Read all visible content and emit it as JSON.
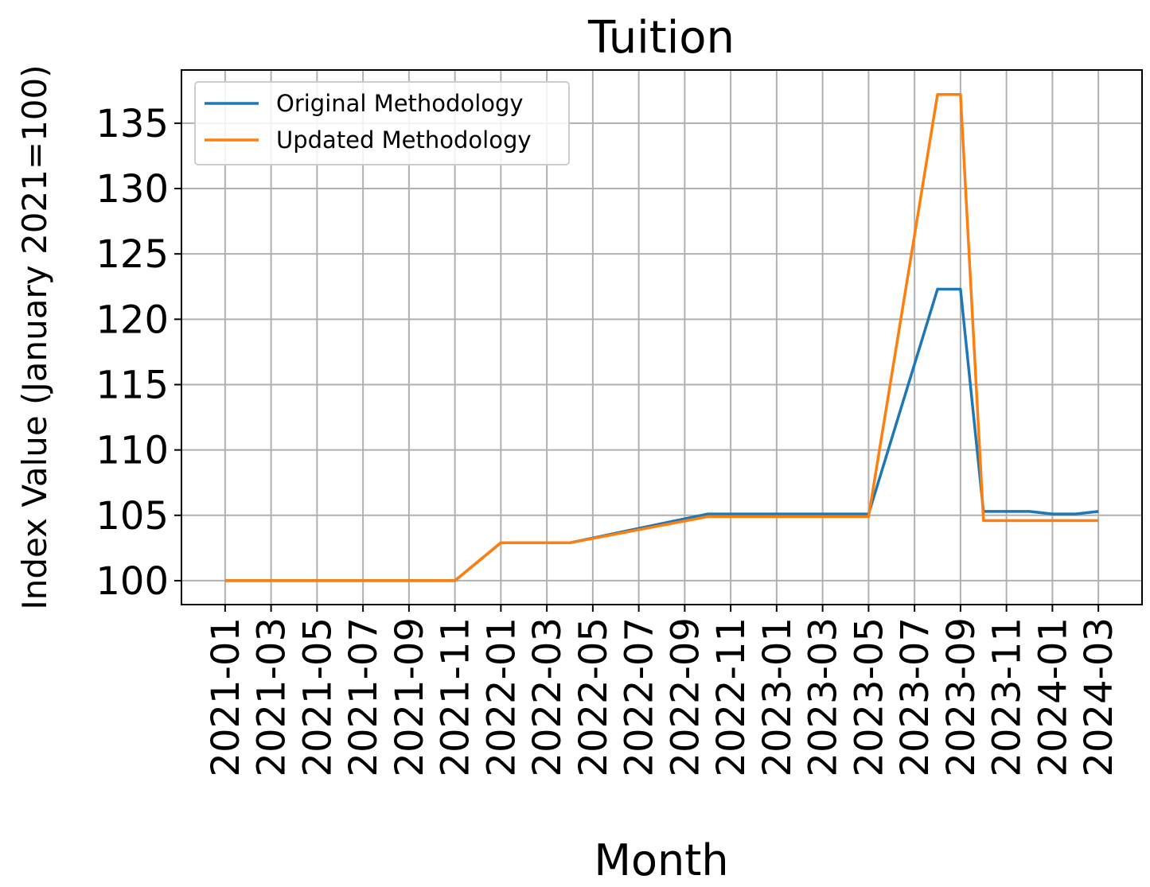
{
  "chart_data": {
    "type": "line",
    "title": "Tuition",
    "x_label": "Month",
    "y_label": "Index Value (January 2021=100)",
    "xticks": [
      "2021-01",
      "2021-03",
      "2021-05",
      "2021-07",
      "2021-09",
      "2021-11",
      "2022-01",
      "2022-03",
      "2022-05",
      "2022-07",
      "2022-09",
      "2022-11",
      "2023-01",
      "2023-03",
      "2023-05",
      "2023-07",
      "2023-09",
      "2023-11",
      "2024-01",
      "2024-03"
    ],
    "ylim": [
      98.17,
      139.07
    ],
    "yticks": [
      100,
      105,
      110,
      115,
      120,
      125,
      130,
      135
    ],
    "grid": true,
    "legend": "upper left",
    "series": [
      {
        "name": "Original Methodology",
        "color": "#1f77b4",
        "x": [
          "2021-01",
          "2021-11",
          "2022-01",
          "2022-04",
          "2022-10",
          "2023-05",
          "2023-08",
          "2023-09",
          "2023-10",
          "2023-12",
          "2024-01",
          "2024-02",
          "2024-03"
        ],
        "values": [
          100,
          100,
          102.9,
          102.9,
          105.1,
          105.1,
          122.3,
          122.3,
          105.3,
          105.3,
          105.1,
          105.1,
          105.3
        ]
      },
      {
        "name": "Updated Methodology",
        "color": "#ff7f0e",
        "x": [
          "2021-01",
          "2021-11",
          "2022-01",
          "2022-04",
          "2022-10",
          "2023-05",
          "2023-08",
          "2023-09",
          "2023-10",
          "2024-03"
        ],
        "values": [
          100,
          100,
          102.9,
          102.9,
          104.9,
          104.9,
          137.2,
          137.2,
          104.6,
          104.6
        ]
      }
    ]
  }
}
